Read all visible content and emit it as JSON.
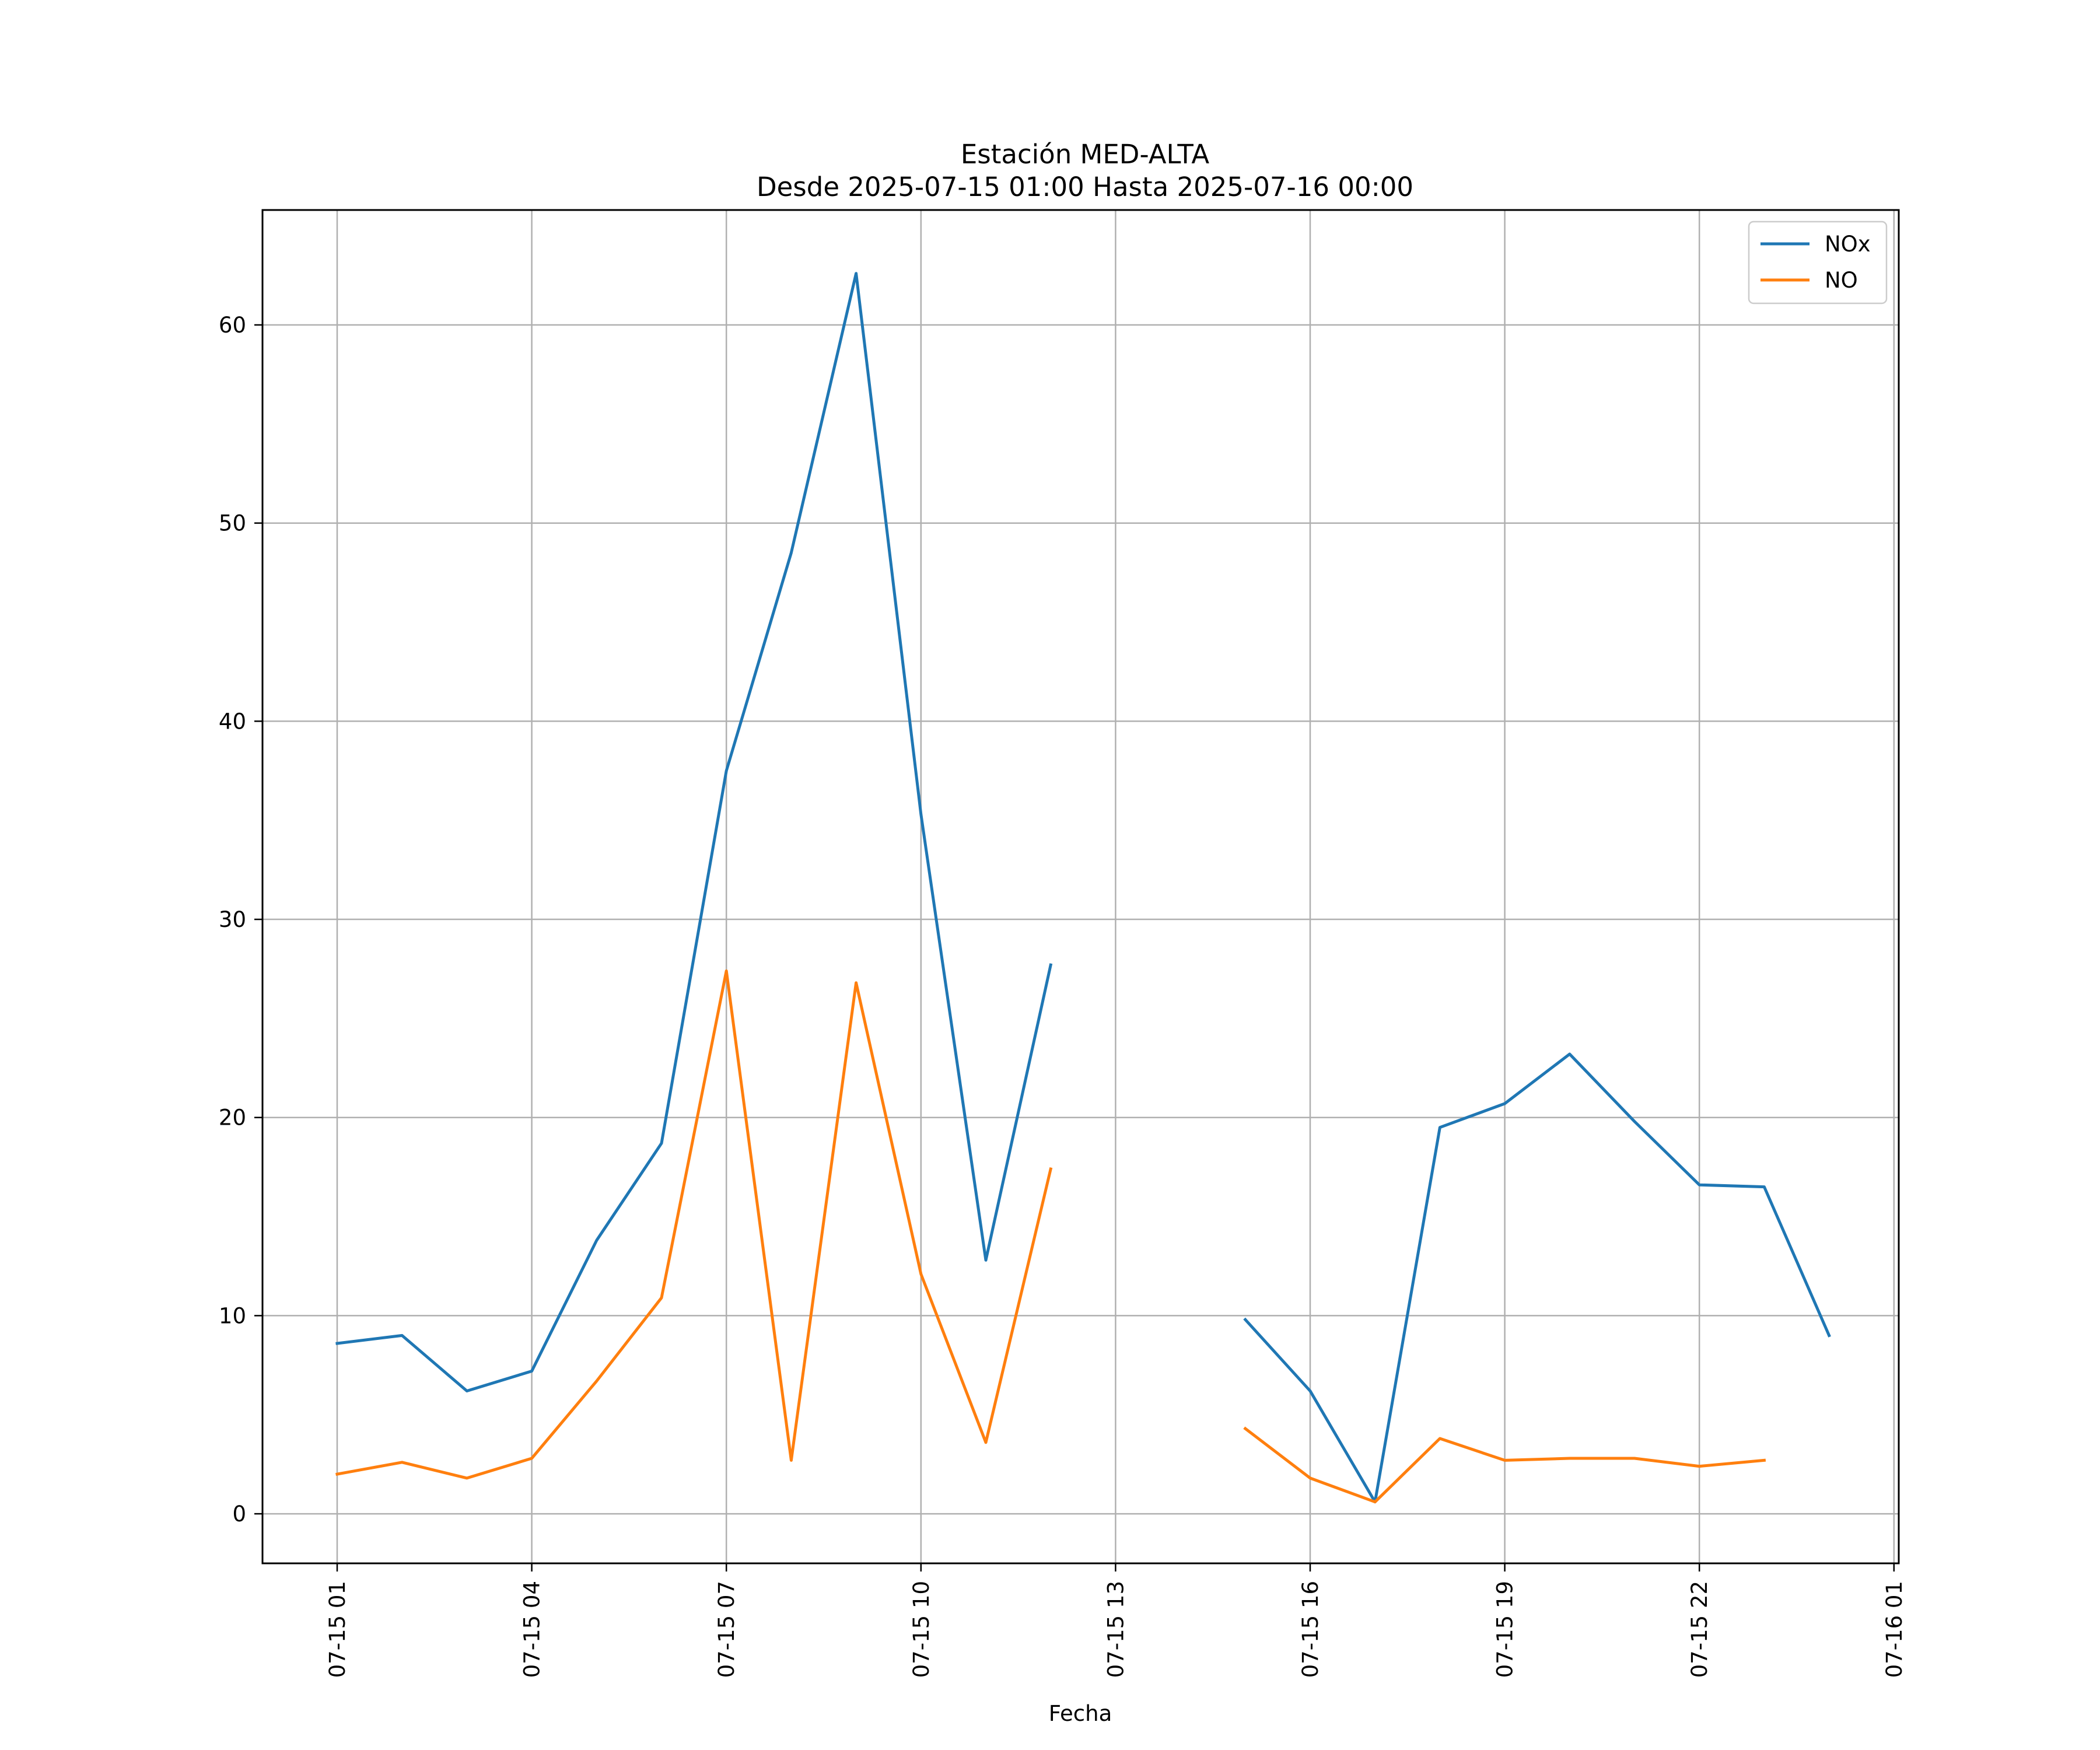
{
  "chart_data": {
    "type": "line",
    "title": "Estación MED-ALTA",
    "subtitle": "Desde 2025-07-15 01:00 Hasta 2025-07-16 00:00",
    "xlabel": "Fecha",
    "ylabel": "",
    "ylim": [
      -2.5,
      65.8
    ],
    "grid": true,
    "legend_position": "top-right",
    "x": [
      "07-15 01:00",
      "07-15 02:00",
      "07-15 03:00",
      "07-15 04:00",
      "07-15 05:00",
      "07-15 06:00",
      "07-15 07:00",
      "07-15 08:00",
      "07-15 09:00",
      "07-15 10:00",
      "07-15 11:00",
      "07-15 12:00",
      "07-15 13:00",
      "07-15 14:00",
      "07-15 15:00",
      "07-15 16:00",
      "07-15 17:00",
      "07-15 18:00",
      "07-15 19:00",
      "07-15 20:00",
      "07-15 21:00",
      "07-15 22:00",
      "07-15 23:00",
      "07-16 00:00"
    ],
    "x_ticks": [
      "07-15 01",
      "07-15 04",
      "07-15 07",
      "07-15 10",
      "07-15 13",
      "07-15 16",
      "07-15 19",
      "07-15 22",
      "07-16 01"
    ],
    "y_ticks": [
      "0",
      "10",
      "20",
      "30",
      "40",
      "50",
      "60"
    ],
    "series": [
      {
        "name": "NOx",
        "color": "#1f77b4",
        "values": [
          8.6,
          9.0,
          6.2,
          7.2,
          13.8,
          18.7,
          37.5,
          48.5,
          62.6,
          35.3,
          12.8,
          27.7,
          null,
          null,
          9.8,
          6.2,
          0.6,
          19.5,
          20.7,
          23.2,
          19.8,
          16.6,
          16.5,
          9.0
        ]
      },
      {
        "name": "NO",
        "color": "#ff7f0e",
        "values": [
          2.0,
          2.6,
          1.8,
          2.8,
          6.7,
          10.9,
          27.4,
          2.7,
          26.8,
          12.1,
          3.6,
          17.4,
          null,
          null,
          4.3,
          1.8,
          0.6,
          3.8,
          2.7,
          2.8,
          2.8,
          2.4,
          2.7,
          null
        ]
      }
    ]
  }
}
